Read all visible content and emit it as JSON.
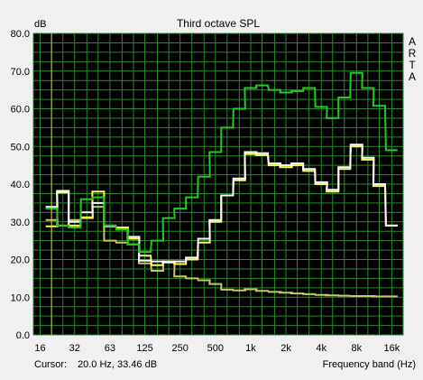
{
  "chart_data": {
    "type": "line",
    "title": "Third octave SPL",
    "ylabel": "dB",
    "xlabel": "Frequency band (Hz)",
    "badge": "ARTA",
    "ylim": [
      0,
      80
    ],
    "x_scale": "log",
    "x_tick_labels": [
      "16",
      "32",
      "63",
      "125",
      "250",
      "500",
      "1k",
      "2k",
      "4k",
      "8k",
      "16k"
    ],
    "y_tick_labels": [
      "0.0",
      "10.0",
      "20.0",
      "30.0",
      "40.0",
      "50.0",
      "60.0",
      "70.0",
      "80.0"
    ],
    "grid": true,
    "plot_background": "#000000",
    "grid_color": "#2b8a2b",
    "x": [
      20,
      25,
      31.5,
      40,
      50,
      63,
      80,
      100,
      125,
      160,
      200,
      250,
      315,
      400,
      500,
      630,
      800,
      1000,
      1250,
      1600,
      2000,
      2500,
      3150,
      4000,
      5000,
      6300,
      8000,
      10000,
      12500,
      16000
    ],
    "series": [
      {
        "color": "#22cc22",
        "values": [
          33.5,
          29,
          28.5,
          36,
          36.5,
          29,
          28,
          24,
          22,
          25,
          31,
          33.5,
          36.5,
          42,
          48.5,
          55,
          60,
          65.5,
          66.2,
          65,
          64.3,
          64.7,
          65.5,
          60.5,
          57.5,
          63,
          69.5,
          65.5,
          60.8,
          49
        ]
      },
      {
        "color": "#ffffff",
        "values": [
          34,
          38.2,
          30,
          32.5,
          35,
          29,
          28,
          26,
          19.7,
          19.5,
          19.2,
          19.5,
          20.5,
          25.5,
          30.5,
          37,
          41.5,
          48.5,
          48.2,
          45.5,
          45,
          45.5,
          44,
          40.5,
          38.5,
          44.5,
          50.5,
          47,
          40,
          29
        ]
      },
      {
        "color": "#ffff55",
        "values": [
          28.8,
          37.8,
          29,
          31.2,
          38,
          28.8,
          28.5,
          25.5,
          21,
          18.5,
          19.5,
          18.8,
          20,
          24.5,
          30,
          37,
          41,
          48,
          47.7,
          45,
          44.5,
          45,
          43.5,
          40,
          38,
          44,
          50,
          46.5,
          39.5,
          29
        ]
      },
      {
        "color": "#c8c864",
        "values": [
          30.5,
          29,
          30.5,
          31,
          34,
          25,
          24.5,
          24,
          19,
          17,
          19.5,
          15.5,
          15,
          14.5,
          13.5,
          12,
          11.8,
          12.1,
          11.7,
          11.4,
          11.2,
          11,
          10.8,
          10.6,
          10.5,
          10.4,
          10.3,
          10.3,
          10.2,
          10.2
        ]
      }
    ]
  },
  "footer": {
    "cursor_label": "Cursor:",
    "cursor_value": "20.0 Hz, 33.46 dB"
  }
}
